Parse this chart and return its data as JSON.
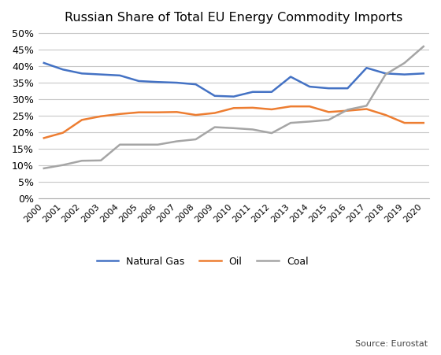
{
  "title": "Russian Share of Total EU Energy Commodity Imports",
  "years": [
    2000,
    2001,
    2002,
    2003,
    2004,
    2005,
    2006,
    2007,
    2008,
    2009,
    2010,
    2011,
    2012,
    2013,
    2014,
    2015,
    2016,
    2017,
    2018,
    2019,
    2020
  ],
  "natural_gas": [
    0.41,
    0.39,
    0.378,
    0.375,
    0.372,
    0.355,
    0.352,
    0.35,
    0.345,
    0.31,
    0.308,
    0.322,
    0.322,
    0.368,
    0.338,
    0.333,
    0.333,
    0.395,
    0.378,
    0.375,
    0.378
  ],
  "oil": [
    0.182,
    0.198,
    0.237,
    0.248,
    0.255,
    0.26,
    0.26,
    0.261,
    0.252,
    0.258,
    0.273,
    0.274,
    0.269,
    0.278,
    0.278,
    0.261,
    0.265,
    0.27,
    0.252,
    0.228,
    0.228
  ],
  "coal": [
    0.09,
    0.1,
    0.113,
    0.114,
    0.162,
    0.162,
    0.162,
    0.172,
    0.178,
    0.215,
    0.212,
    0.208,
    0.197,
    0.228,
    0.232,
    0.237,
    0.268,
    0.28,
    0.375,
    0.41,
    0.46
  ],
  "natural_gas_color": "#4472c4",
  "oil_color": "#ed7d31",
  "coal_color": "#a5a5a5",
  "background_color": "#ffffff",
  "grid_color": "#c8c8c8",
  "ylim": [
    0,
    0.51
  ],
  "yticks": [
    0.0,
    0.05,
    0.1,
    0.15,
    0.2,
    0.25,
    0.3,
    0.35,
    0.4,
    0.45,
    0.5
  ],
  "source_text": "Source: Eurostat",
  "legend_labels": [
    "Natural Gas",
    "Oil",
    "Coal"
  ]
}
